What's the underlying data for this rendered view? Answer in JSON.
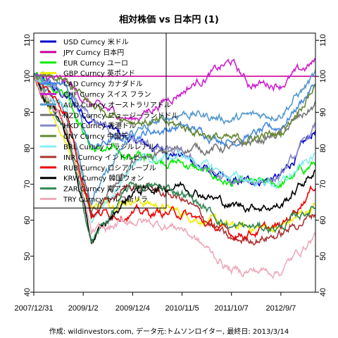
{
  "chart_data": {
    "type": "line",
    "title": "相対株価 vs 日本円 (1)",
    "footer": "作成: wildinvestors.com, データ元:トムソンロイター, 最終日: 2013/3/14",
    "x_tick_labels": [
      "2007/12/31",
      "2009/1/2",
      "2009/12/4",
      "2010/11/5",
      "2011/10/7",
      "2012/9/7"
    ],
    "x_ticks_index": [
      0,
      60,
      120,
      180,
      240,
      300
    ],
    "x_range_index": [
      0,
      342
    ],
    "ylim": [
      40,
      112
    ],
    "y_ticks": [
      40,
      50,
      60,
      70,
      80,
      90,
      100,
      110
    ],
    "ylabel": "",
    "legend_position": "top-left",
    "series": [
      {
        "name": "USD Curncy 米ドル",
        "color": "#0000cc",
        "keypoints": [
          [
            0,
            100
          ],
          [
            40,
            94
          ],
          [
            70,
            88
          ],
          [
            120,
            82
          ],
          [
            180,
            78
          ],
          [
            240,
            70
          ],
          [
            300,
            72
          ],
          [
            342,
            85
          ]
        ]
      },
      {
        "name": "JPY Curncy 日本円",
        "color": "#cc0099",
        "keypoints": [
          [
            0,
            100
          ],
          [
            342,
            100
          ]
        ]
      },
      {
        "name": "EUR Curncy ユーロ",
        "color": "#00ee00",
        "keypoints": [
          [
            0,
            100
          ],
          [
            40,
            96
          ],
          [
            70,
            80
          ],
          [
            120,
            78
          ],
          [
            180,
            76
          ],
          [
            240,
            70
          ],
          [
            300,
            70
          ],
          [
            342,
            76
          ]
        ]
      },
      {
        "name": "GBP Curncy 英ポンド",
        "color": "#eeee00",
        "keypoints": [
          [
            0,
            100
          ],
          [
            40,
            82
          ],
          [
            70,
            64
          ],
          [
            120,
            66
          ],
          [
            180,
            62
          ],
          [
            240,
            58
          ],
          [
            300,
            58
          ],
          [
            342,
            64
          ]
        ]
      },
      {
        "name": "CAD Curncy カナダドル",
        "color": "#4488dd",
        "keypoints": [
          [
            0,
            100
          ],
          [
            40,
            98
          ],
          [
            70,
            80
          ],
          [
            120,
            84
          ],
          [
            180,
            86
          ],
          [
            240,
            82
          ],
          [
            300,
            86
          ],
          [
            342,
            98
          ]
        ]
      },
      {
        "name": "CHF Curncy スイス フラン",
        "color": "#cc22cc",
        "keypoints": [
          [
            0,
            100
          ],
          [
            40,
            98
          ],
          [
            70,
            92
          ],
          [
            120,
            88
          ],
          [
            180,
            96
          ],
          [
            240,
            104
          ],
          [
            260,
            98
          ],
          [
            300,
            98
          ],
          [
            342,
            104
          ]
        ]
      },
      {
        "name": "AUD Curncy オーストラリアドル",
        "color": "#5599cc",
        "keypoints": [
          [
            0,
            100
          ],
          [
            40,
            90
          ],
          [
            70,
            66
          ],
          [
            120,
            84
          ],
          [
            180,
            90
          ],
          [
            240,
            88
          ],
          [
            300,
            90
          ],
          [
            342,
            100
          ]
        ]
      },
      {
        "name": "NZD Curncy ニュージーランドドル",
        "color": "#777777",
        "keypoints": [
          [
            0,
            100
          ],
          [
            40,
            88
          ],
          [
            70,
            62
          ],
          [
            120,
            76
          ],
          [
            180,
            80
          ],
          [
            240,
            80
          ],
          [
            300,
            84
          ],
          [
            342,
            92
          ]
        ]
      },
      {
        "name": "HKD Curncy 香港ドル",
        "color": "#8888cc",
        "keypoints": [
          [
            0,
            100
          ],
          [
            40,
            94
          ],
          [
            70,
            88
          ],
          [
            120,
            82
          ],
          [
            180,
            78
          ],
          [
            240,
            70
          ],
          [
            300,
            72
          ],
          [
            342,
            86
          ]
        ]
      },
      {
        "name": "CNY Curncy 中国元",
        "color": "#668833",
        "keypoints": [
          [
            0,
            100
          ],
          [
            40,
            98
          ],
          [
            70,
            92
          ],
          [
            120,
            88
          ],
          [
            180,
            86
          ],
          [
            240,
            82
          ],
          [
            300,
            84
          ],
          [
            342,
            98
          ]
        ]
      },
      {
        "name": "BRL Curncy ブラジルレアル",
        "color": "#88eeee",
        "keypoints": [
          [
            0,
            100
          ],
          [
            40,
            90
          ],
          [
            70,
            60
          ],
          [
            120,
            76
          ],
          [
            180,
            78
          ],
          [
            240,
            72
          ],
          [
            300,
            70
          ],
          [
            342,
            78
          ]
        ]
      },
      {
        "name": "INR Curncy インドルピー",
        "color": "#aa3333",
        "keypoints": [
          [
            0,
            100
          ],
          [
            40,
            84
          ],
          [
            70,
            62
          ],
          [
            120,
            70
          ],
          [
            180,
            66
          ],
          [
            240,
            54
          ],
          [
            300,
            56
          ],
          [
            342,
            62
          ]
        ]
      },
      {
        "name": "RUB Curncy ロシアルーブル",
        "color": "#ee0000",
        "keypoints": [
          [
            0,
            100
          ],
          [
            40,
            90
          ],
          [
            70,
            62
          ],
          [
            120,
            62
          ],
          [
            180,
            62
          ],
          [
            240,
            56
          ],
          [
            300,
            58
          ],
          [
            342,
            70
          ]
        ]
      },
      {
        "name": "KRW Curncy 韓国ウォン",
        "color": "#000000",
        "keypoints": [
          [
            0,
            100
          ],
          [
            40,
            84
          ],
          [
            70,
            54
          ],
          [
            120,
            68
          ],
          [
            180,
            70
          ],
          [
            240,
            64
          ],
          [
            300,
            64
          ],
          [
            342,
            74
          ]
        ]
      },
      {
        "name": "ZAR Curncy 南アフリカランド",
        "color": "#338855",
        "keypoints": [
          [
            0,
            100
          ],
          [
            40,
            84
          ],
          [
            70,
            54
          ],
          [
            120,
            70
          ],
          [
            180,
            68
          ],
          [
            240,
            58
          ],
          [
            300,
            58
          ],
          [
            342,
            64
          ]
        ]
      },
      {
        "name": "TRY Curncy トルコ新リラ",
        "color": "#eeaabb",
        "keypoints": [
          [
            0,
            100
          ],
          [
            40,
            86
          ],
          [
            70,
            56
          ],
          [
            120,
            60
          ],
          [
            180,
            58
          ],
          [
            240,
            46
          ],
          [
            300,
            46
          ],
          [
            342,
            56
          ]
        ]
      }
    ]
  }
}
